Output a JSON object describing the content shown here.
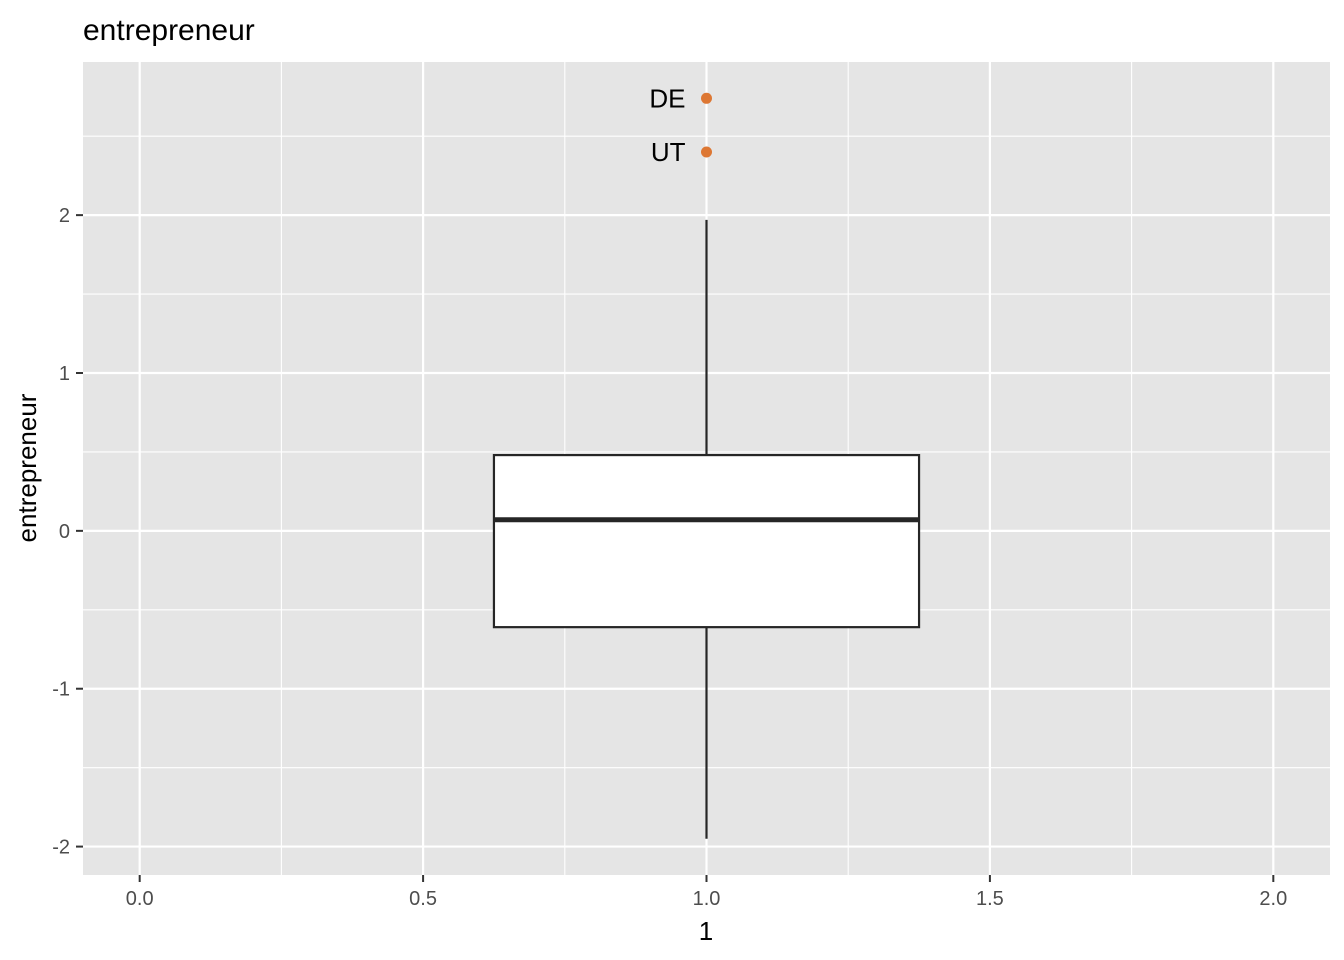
{
  "chart_data": {
    "type": "boxplot",
    "title": "entrepreneur",
    "xlabel": "1",
    "ylabel": "entrepreneur",
    "xlim": [
      -0.1,
      2.1
    ],
    "ylim": [
      -2.18,
      2.97
    ],
    "x_ticks": [
      0.0,
      0.5,
      1.0,
      1.5,
      2.0
    ],
    "x_tick_labels": [
      "0.0",
      "0.5",
      "1.0",
      "1.5",
      "2.0"
    ],
    "y_ticks": [
      -2,
      -1,
      0,
      1,
      2
    ],
    "y_tick_labels": [
      "-2",
      "-1",
      "0",
      "1",
      "2"
    ],
    "grid": true,
    "box": {
      "x": 1.0,
      "width_range": [
        0.625,
        1.375
      ],
      "whisker_low": -1.95,
      "q1": -0.61,
      "median": 0.07,
      "q3": 0.48,
      "whisker_high": 1.97
    },
    "outliers": [
      {
        "label": "DE",
        "x": 1.0,
        "y": 2.74
      },
      {
        "label": "UT",
        "x": 1.0,
        "y": 2.4
      }
    ],
    "colors": {
      "panel": "#e5e5e5",
      "grid": "#ffffff",
      "box_fill": "#ffffff",
      "box_line": "#262626",
      "outlier": "#dd7733",
      "tick_text": "#4d4d4d",
      "tick_mark": "#333333"
    }
  }
}
